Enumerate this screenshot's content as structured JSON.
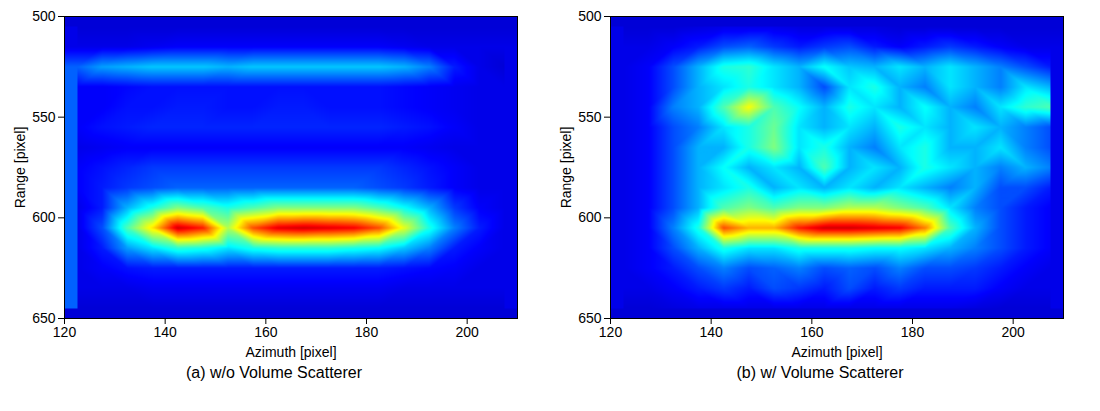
{
  "chart_data": [
    {
      "type": "heatmap",
      "title": "(a) w/o Volume Scatterer",
      "x_label": "Azimuth [pixel]",
      "y_label": "Range [pixel]",
      "xlim": [
        120,
        210
      ],
      "ylim": [
        500,
        650
      ],
      "xticks": [
        120,
        140,
        160,
        180,
        200
      ],
      "yticks": [
        500,
        550,
        600,
        650
      ],
      "value_range": [
        0,
        1
      ],
      "x": [
        122.5,
        127.5,
        132.5,
        137.5,
        142.5,
        147.5,
        152.5,
        157.5,
        162.5,
        167.5,
        172.5,
        177.5,
        182.5,
        187.5,
        192.5,
        197.5,
        202.5,
        207.5
      ],
      "y": [
        505,
        515,
        525,
        535,
        545,
        555,
        565,
        575,
        585,
        595,
        605,
        615,
        625,
        635,
        645
      ],
      "values": [
        [
          0.08,
          0.08,
          0.08,
          0.08,
          0.08,
          0.08,
          0.08,
          0.08,
          0.08,
          0.08,
          0.08,
          0.08,
          0.08,
          0.08,
          0.08,
          0.08,
          0.08,
          0.08
        ],
        [
          0.1,
          0.1,
          0.1,
          0.11,
          0.12,
          0.12,
          0.12,
          0.12,
          0.12,
          0.12,
          0.12,
          0.12,
          0.12,
          0.11,
          0.1,
          0.1,
          0.1,
          0.1
        ],
        [
          0.22,
          0.28,
          0.3,
          0.32,
          0.32,
          0.32,
          0.3,
          0.32,
          0.32,
          0.32,
          0.32,
          0.32,
          0.32,
          0.3,
          0.25,
          0.15,
          0.1,
          0.08
        ],
        [
          0.12,
          0.12,
          0.13,
          0.14,
          0.14,
          0.14,
          0.14,
          0.14,
          0.14,
          0.14,
          0.14,
          0.14,
          0.14,
          0.13,
          0.12,
          0.11,
          0.1,
          0.1
        ],
        [
          0.12,
          0.12,
          0.14,
          0.14,
          0.15,
          0.15,
          0.14,
          0.14,
          0.15,
          0.15,
          0.14,
          0.14,
          0.14,
          0.13,
          0.12,
          0.11,
          0.1,
          0.1
        ],
        [
          0.12,
          0.14,
          0.15,
          0.16,
          0.16,
          0.16,
          0.16,
          0.16,
          0.16,
          0.16,
          0.16,
          0.16,
          0.16,
          0.15,
          0.14,
          0.12,
          0.1,
          0.1
        ],
        [
          0.1,
          0.11,
          0.12,
          0.12,
          0.12,
          0.12,
          0.12,
          0.12,
          0.12,
          0.12,
          0.12,
          0.12,
          0.12,
          0.12,
          0.11,
          0.1,
          0.1,
          0.1
        ],
        [
          0.12,
          0.14,
          0.16,
          0.18,
          0.18,
          0.18,
          0.18,
          0.18,
          0.18,
          0.18,
          0.18,
          0.18,
          0.18,
          0.16,
          0.14,
          0.12,
          0.1,
          0.1
        ],
        [
          0.12,
          0.15,
          0.18,
          0.2,
          0.22,
          0.22,
          0.22,
          0.22,
          0.22,
          0.22,
          0.22,
          0.22,
          0.2,
          0.18,
          0.15,
          0.12,
          0.1,
          0.1
        ],
        [
          0.1,
          0.15,
          0.3,
          0.4,
          0.5,
          0.45,
          0.4,
          0.45,
          0.5,
          0.5,
          0.5,
          0.5,
          0.45,
          0.38,
          0.3,
          0.18,
          0.12,
          0.1
        ],
        [
          0.1,
          0.2,
          0.45,
          0.65,
          0.92,
          0.85,
          0.55,
          0.8,
          0.9,
          0.92,
          0.9,
          0.88,
          0.8,
          0.6,
          0.4,
          0.25,
          0.15,
          0.1
        ],
        [
          0.1,
          0.15,
          0.28,
          0.35,
          0.42,
          0.4,
          0.35,
          0.4,
          0.42,
          0.42,
          0.42,
          0.4,
          0.38,
          0.32,
          0.25,
          0.15,
          0.12,
          0.1
        ],
        [
          0.1,
          0.12,
          0.14,
          0.15,
          0.15,
          0.15,
          0.15,
          0.15,
          0.15,
          0.15,
          0.15,
          0.15,
          0.15,
          0.14,
          0.13,
          0.12,
          0.1,
          0.1
        ],
        [
          0.1,
          0.1,
          0.1,
          0.11,
          0.11,
          0.11,
          0.11,
          0.11,
          0.11,
          0.11,
          0.11,
          0.11,
          0.11,
          0.1,
          0.1,
          0.1,
          0.1,
          0.1
        ],
        [
          0.08,
          0.08,
          0.08,
          0.08,
          0.08,
          0.08,
          0.08,
          0.08,
          0.08,
          0.08,
          0.08,
          0.08,
          0.08,
          0.08,
          0.08,
          0.08,
          0.08,
          0.08
        ]
      ]
    },
    {
      "type": "heatmap",
      "title": "(b) w/ Volume Scatterer",
      "x_label": "Azimuth [pixel]",
      "y_label": "Range [pixel]",
      "xlim": [
        120,
        210
      ],
      "ylim": [
        500,
        650
      ],
      "xticks": [
        120,
        140,
        160,
        180,
        200
      ],
      "yticks": [
        500,
        550,
        600,
        650
      ],
      "value_range": [
        0,
        1
      ],
      "x": [
        122.5,
        127.5,
        132.5,
        137.5,
        142.5,
        147.5,
        152.5,
        157.5,
        162.5,
        167.5,
        172.5,
        177.5,
        182.5,
        187.5,
        192.5,
        197.5,
        202.5,
        207.5
      ],
      "y": [
        505,
        515,
        525,
        535,
        545,
        555,
        565,
        575,
        585,
        595,
        605,
        615,
        625,
        635,
        645
      ],
      "values": [
        [
          0.08,
          0.08,
          0.08,
          0.09,
          0.1,
          0.1,
          0.1,
          0.09,
          0.09,
          0.09,
          0.09,
          0.08,
          0.08,
          0.08,
          0.08,
          0.08,
          0.08,
          0.08
        ],
        [
          0.1,
          0.1,
          0.12,
          0.15,
          0.2,
          0.22,
          0.18,
          0.15,
          0.18,
          0.2,
          0.15,
          0.12,
          0.15,
          0.18,
          0.15,
          0.12,
          0.1,
          0.1
        ],
        [
          0.1,
          0.12,
          0.2,
          0.3,
          0.4,
          0.42,
          0.35,
          0.3,
          0.38,
          0.32,
          0.3,
          0.35,
          0.3,
          0.35,
          0.3,
          0.25,
          0.2,
          0.15
        ],
        [
          0.1,
          0.12,
          0.2,
          0.3,
          0.35,
          0.4,
          0.35,
          0.3,
          0.2,
          0.35,
          0.4,
          0.3,
          0.25,
          0.35,
          0.3,
          0.25,
          0.35,
          0.3
        ],
        [
          0.1,
          0.12,
          0.25,
          0.3,
          0.45,
          0.62,
          0.45,
          0.38,
          0.3,
          0.4,
          0.35,
          0.3,
          0.38,
          0.3,
          0.25,
          0.35,
          0.42,
          0.45
        ],
        [
          0.1,
          0.12,
          0.2,
          0.25,
          0.35,
          0.4,
          0.48,
          0.35,
          0.3,
          0.35,
          0.3,
          0.4,
          0.35,
          0.3,
          0.35,
          0.3,
          0.25,
          0.2
        ],
        [
          0.1,
          0.12,
          0.2,
          0.3,
          0.3,
          0.4,
          0.5,
          0.35,
          0.4,
          0.3,
          0.25,
          0.35,
          0.4,
          0.3,
          0.3,
          0.35,
          0.25,
          0.2
        ],
        [
          0.1,
          0.12,
          0.2,
          0.3,
          0.38,
          0.3,
          0.35,
          0.3,
          0.45,
          0.3,
          0.35,
          0.3,
          0.4,
          0.35,
          0.3,
          0.25,
          0.3,
          0.25
        ],
        [
          0.1,
          0.12,
          0.2,
          0.3,
          0.35,
          0.4,
          0.3,
          0.35,
          0.3,
          0.35,
          0.3,
          0.35,
          0.3,
          0.25,
          0.3,
          0.2,
          0.2,
          0.15
        ],
        [
          0.1,
          0.12,
          0.2,
          0.3,
          0.45,
          0.5,
          0.45,
          0.5,
          0.5,
          0.55,
          0.55,
          0.5,
          0.45,
          0.35,
          0.25,
          0.2,
          0.15,
          0.12
        ],
        [
          0.1,
          0.12,
          0.25,
          0.4,
          0.8,
          0.7,
          0.7,
          0.85,
          0.92,
          0.92,
          0.9,
          0.88,
          0.75,
          0.45,
          0.3,
          0.2,
          0.15,
          0.12
        ],
        [
          0.1,
          0.12,
          0.2,
          0.3,
          0.4,
          0.35,
          0.35,
          0.4,
          0.4,
          0.4,
          0.38,
          0.38,
          0.35,
          0.3,
          0.25,
          0.2,
          0.15,
          0.12
        ],
        [
          0.1,
          0.12,
          0.15,
          0.2,
          0.25,
          0.2,
          0.22,
          0.25,
          0.2,
          0.22,
          0.2,
          0.25,
          0.2,
          0.2,
          0.18,
          0.15,
          0.12,
          0.1
        ],
        [
          0.1,
          0.1,
          0.12,
          0.15,
          0.18,
          0.15,
          0.2,
          0.18,
          0.15,
          0.2,
          0.15,
          0.18,
          0.15,
          0.15,
          0.15,
          0.12,
          0.1,
          0.1
        ],
        [
          0.08,
          0.08,
          0.09,
          0.1,
          0.1,
          0.1,
          0.1,
          0.1,
          0.1,
          0.1,
          0.1,
          0.1,
          0.1,
          0.1,
          0.09,
          0.08,
          0.08,
          0.08
        ]
      ]
    }
  ]
}
